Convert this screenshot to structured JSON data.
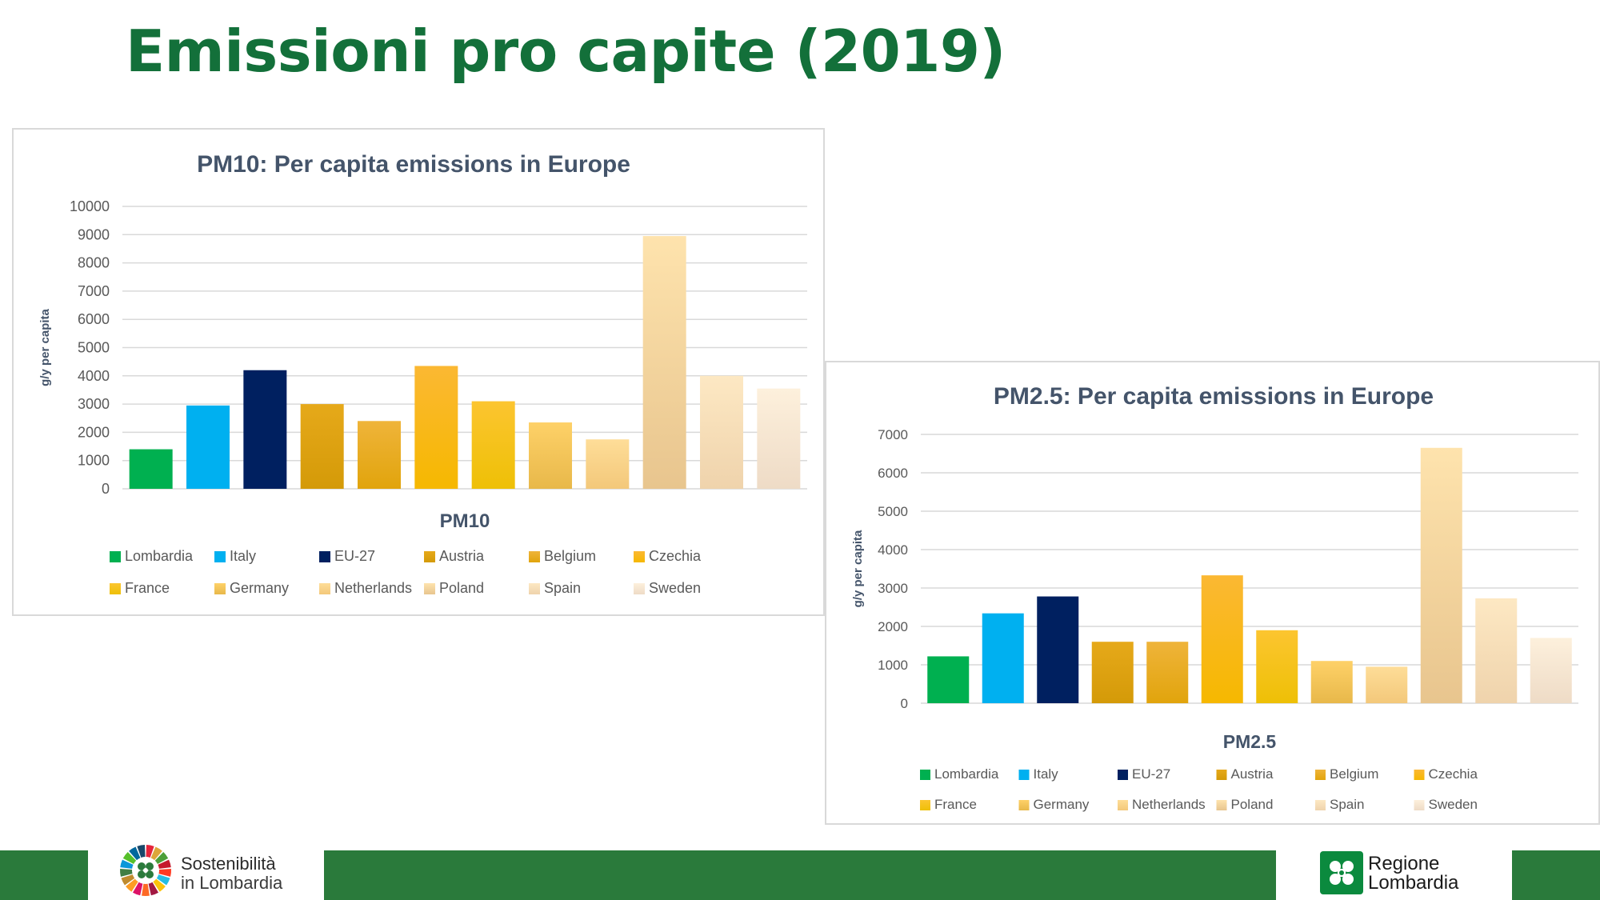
{
  "title": "Emissioni pro capite (2019)",
  "colors": {
    "title": "#13703a",
    "footer": "#2a7a3b",
    "Lombardia": "#00b050",
    "Italy": "#00b0f0",
    "EU-27": "#002060",
    "Austria": [
      "#e6a91a",
      "#d49a08"
    ],
    "Belgium": [
      "#efb43a",
      "#e1a40c"
    ],
    "Czechia": [
      "#fbb833",
      "#f6b800"
    ],
    "France": [
      "#fcc530",
      "#eec006"
    ],
    "Germany": [
      "#fed168",
      "#e8b84a"
    ],
    "Netherlands": [
      "#fedd98",
      "#f3c87a"
    ],
    "Poland": [
      "#fee3ad",
      "#e8c58e"
    ],
    "Spain": [
      "#fde8c3",
      "#efd3ac"
    ],
    "Sweden": [
      "#fdf0dc",
      "#eedbc6"
    ]
  },
  "chart_data": [
    {
      "type": "bar",
      "title": "PM10: Per capita emissions in Europe",
      "xlabel": "PM10",
      "ylabel": "g/y per capita",
      "ylim": [
        0,
        10000
      ],
      "yticks": [
        "0",
        "1000",
        "2000",
        "3000",
        "4000",
        "5000",
        "6000",
        "7000",
        "8000",
        "9000",
        "10000"
      ],
      "grid": true,
      "legend": "bottom",
      "categories": [
        "Lombardia",
        "Italy",
        "EU-27",
        "Austria",
        "Belgium",
        "Czechia",
        "France",
        "Germany",
        "Netherlands",
        "Poland",
        "Spain",
        "Sweden"
      ],
      "values": [
        1400,
        2950,
        4200,
        3000,
        2400,
        4350,
        3100,
        2350,
        1750,
        8950,
        4000,
        3550
      ]
    },
    {
      "type": "bar",
      "title": "PM2.5: Per capita emissions in Europe",
      "xlabel": "PM2.5",
      "ylabel": "g/y per capita",
      "ylim": [
        0,
        7000
      ],
      "yticks": [
        "0",
        "1000",
        "2000",
        "3000",
        "4000",
        "5000",
        "6000",
        "7000"
      ],
      "grid": true,
      "legend": "bottom",
      "categories": [
        "Lombardia",
        "Italy",
        "EU-27",
        "Austria",
        "Belgium",
        "Czechia",
        "France",
        "Germany",
        "Netherlands",
        "Poland",
        "Spain",
        "Sweden"
      ],
      "values": [
        1220,
        2340,
        2780,
        1600,
        1600,
        3330,
        1900,
        1100,
        950,
        6650,
        2730,
        1700
      ]
    }
  ],
  "footer": {
    "left_logo": {
      "line1": "Sostenibilità",
      "line2": "in Lombardia"
    },
    "right_logo": {
      "line1": "Regione",
      "line2": "Lombardia"
    }
  }
}
